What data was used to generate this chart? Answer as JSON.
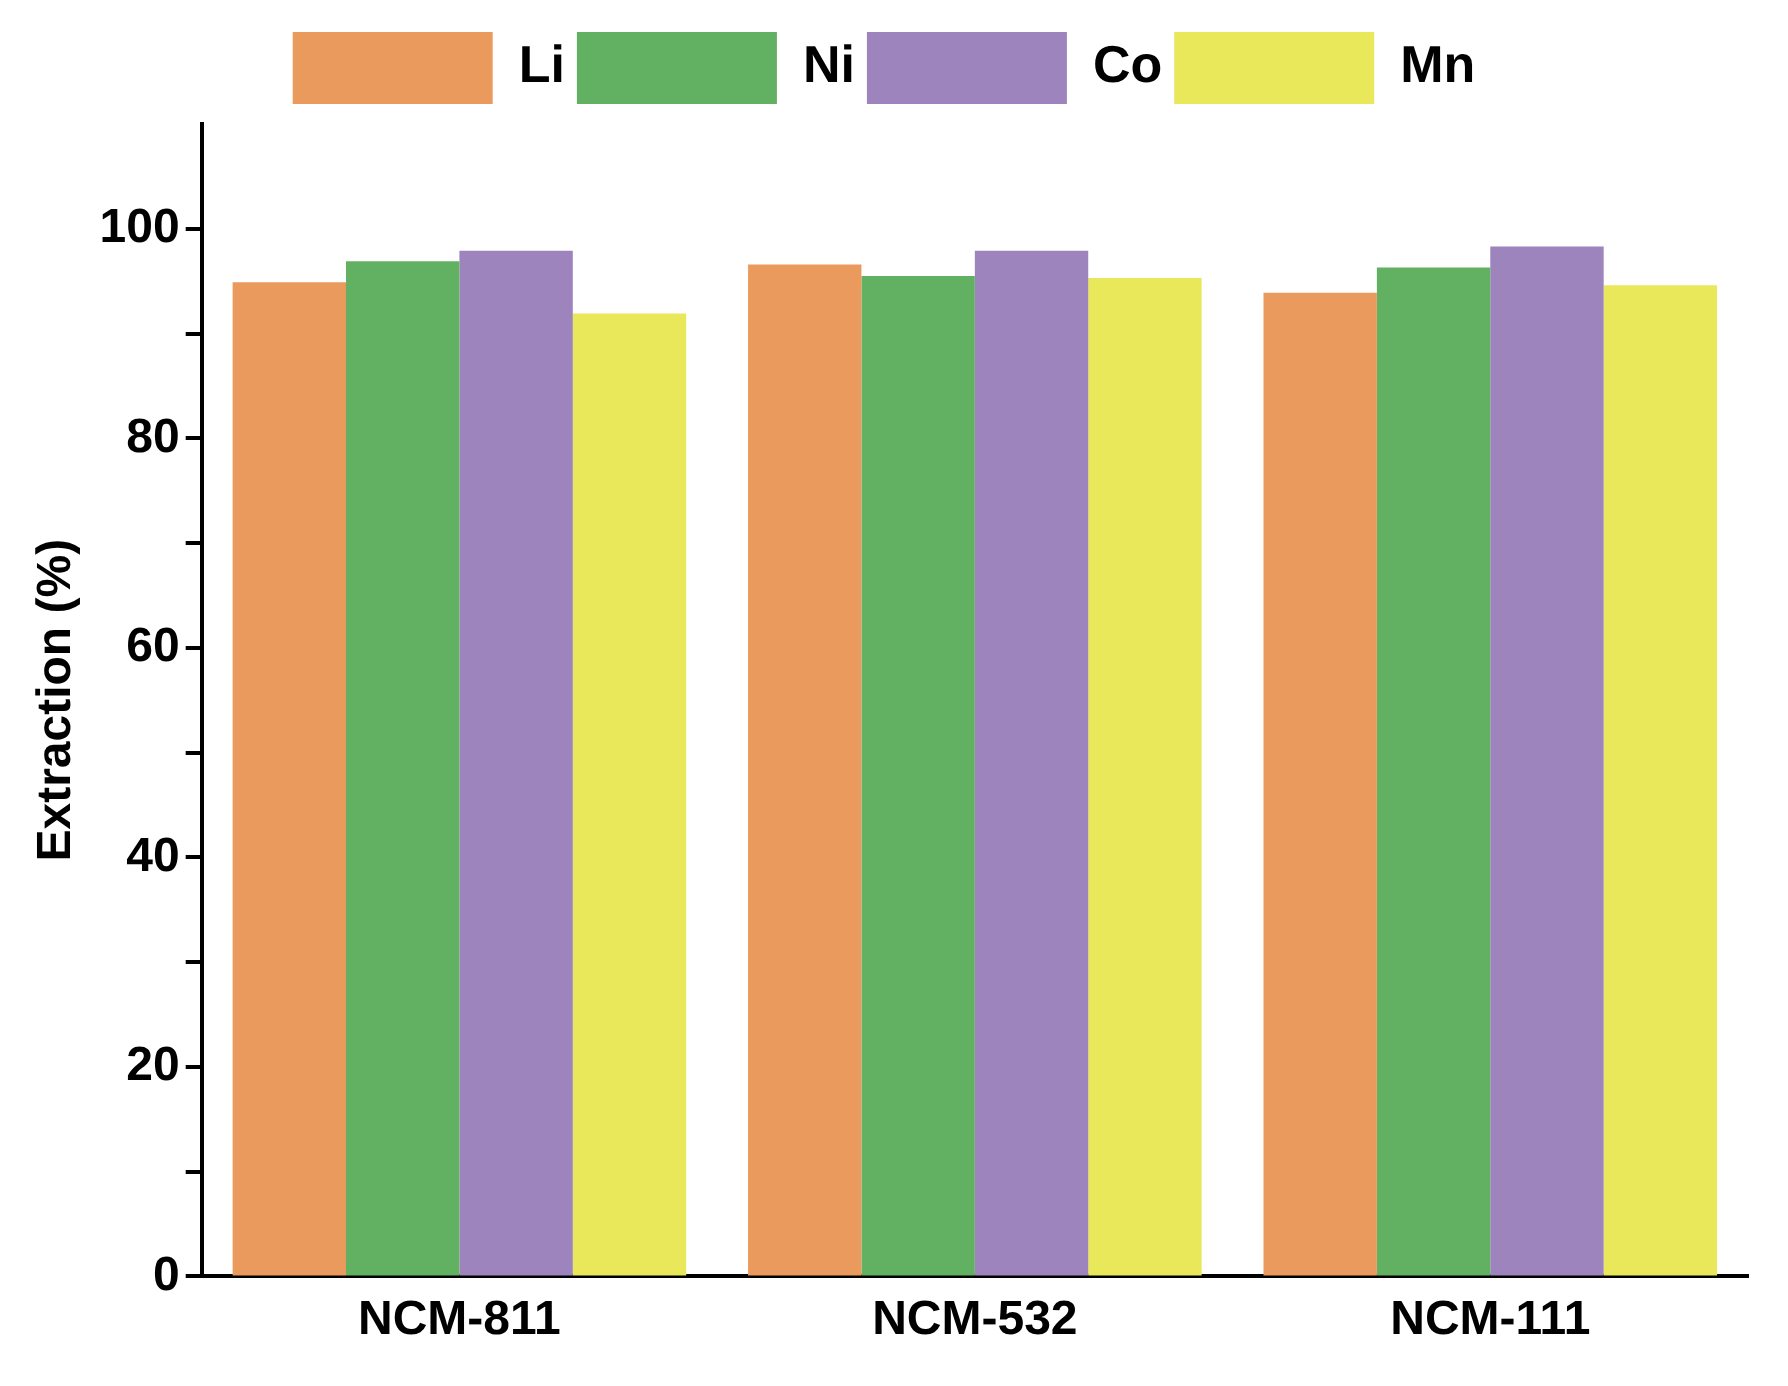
{
  "chart_data": {
    "type": "bar",
    "ylabel": "Extraction (%)",
    "categories": [
      "NCM-811",
      "NCM-532",
      "NCM-111"
    ],
    "series": [
      {
        "name": "Li",
        "color": "#eb9a5e",
        "values": [
          94.9,
          96.6,
          93.9
        ]
      },
      {
        "name": "Ni",
        "color": "#62b062",
        "values": [
          96.9,
          95.5,
          96.3
        ]
      },
      {
        "name": "Co",
        "color": "#9d84bd",
        "values": [
          97.9,
          97.9,
          98.3
        ]
      },
      {
        "name": "Mn",
        "color": "#e8e85a",
        "values": [
          91.9,
          95.3,
          94.6
        ]
      }
    ],
    "ylim": [
      0,
      110
    ],
    "yticks": [
      0,
      {
        "value": 10,
        "label": null
      },
      20,
      {
        "value": 30,
        "label": null
      },
      40,
      {
        "value": 50,
        "label": null
      },
      60,
      {
        "value": 70,
        "label": null
      },
      80,
      {
        "value": 90,
        "label": null
      },
      100
    ],
    "grid": false,
    "legend": "top"
  }
}
